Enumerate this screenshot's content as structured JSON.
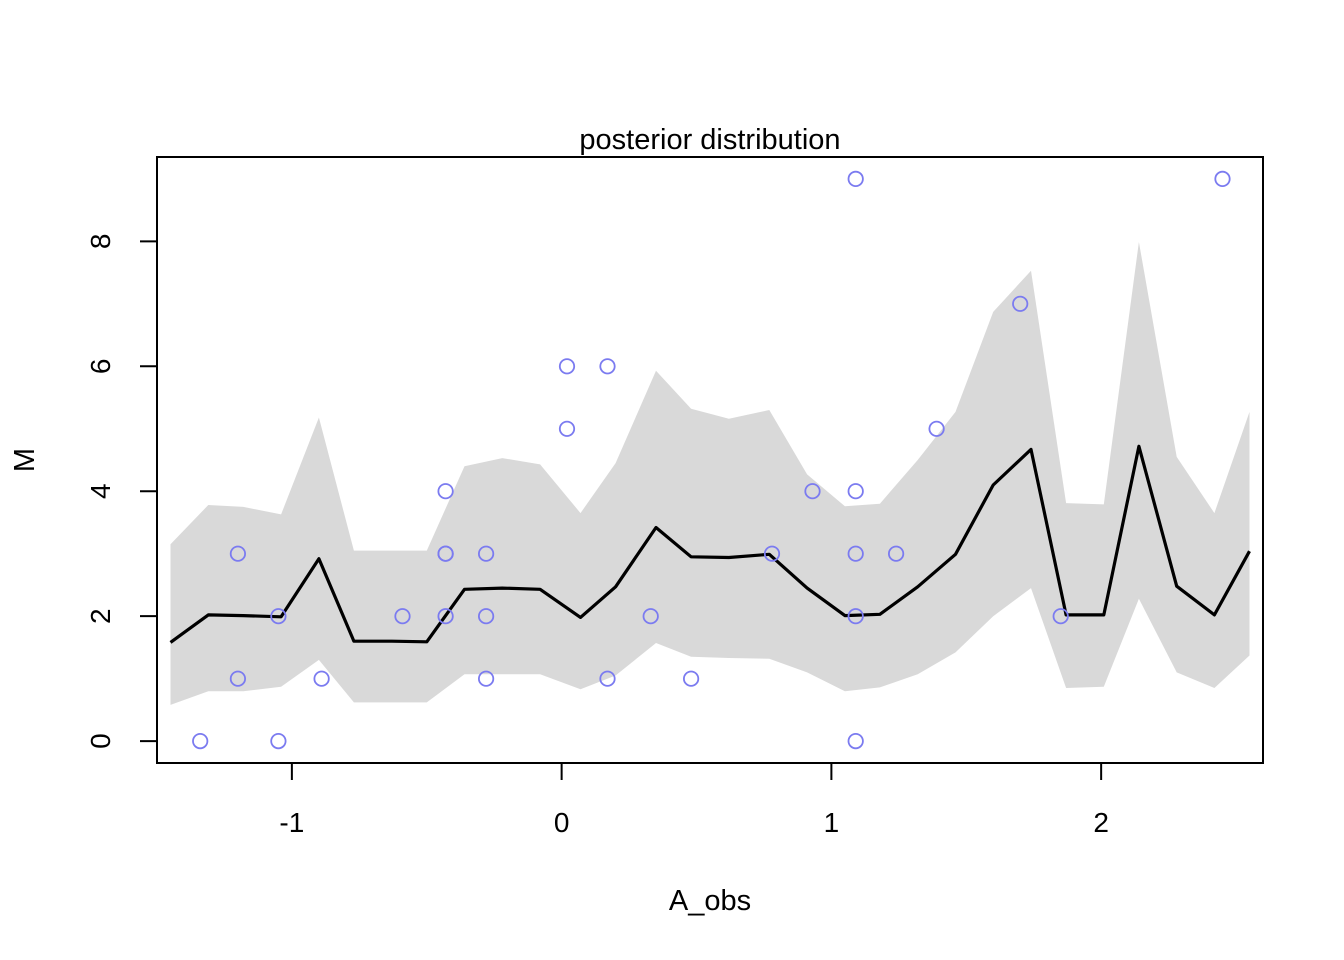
{
  "chart_data": {
    "type": "scatter",
    "title": "posterior distribution",
    "xlabel": "A_obs",
    "ylabel": "M",
    "xlim": [
      -1.5,
      2.6
    ],
    "ylim": [
      -0.35,
      9.35
    ],
    "x_ticks": [
      -1,
      0,
      1,
      2
    ],
    "x_tick_labels": [
      "-1",
      "0",
      "1",
      "2"
    ],
    "y_ticks": [
      0,
      2,
      4,
      6,
      8
    ],
    "y_tick_labels": [
      "0",
      "2",
      "4",
      "6",
      "8"
    ],
    "grid": false,
    "colors": {
      "points": "#7b7bf0",
      "interval": "#d9d9d9",
      "mean_line": "#000000",
      "frame": "#000000"
    },
    "points": [
      {
        "x": -1.34,
        "y": 0
      },
      {
        "x": -1.2,
        "y": 3
      },
      {
        "x": -1.2,
        "y": 1
      },
      {
        "x": -1.05,
        "y": 2
      },
      {
        "x": -1.05,
        "y": 0
      },
      {
        "x": -0.89,
        "y": 1
      },
      {
        "x": -0.59,
        "y": 2
      },
      {
        "x": -0.43,
        "y": 4
      },
      {
        "x": -0.43,
        "y": 3
      },
      {
        "x": -0.43,
        "y": 3
      },
      {
        "x": -0.43,
        "y": 2
      },
      {
        "x": -0.28,
        "y": 3
      },
      {
        "x": -0.28,
        "y": 2
      },
      {
        "x": -0.28,
        "y": 1
      },
      {
        "x": 0.02,
        "y": 6
      },
      {
        "x": 0.02,
        "y": 5
      },
      {
        "x": 0.17,
        "y": 6
      },
      {
        "x": 0.17,
        "y": 1
      },
      {
        "x": 0.33,
        "y": 2
      },
      {
        "x": 0.48,
        "y": 1
      },
      {
        "x": 0.78,
        "y": 3
      },
      {
        "x": 0.93,
        "y": 4
      },
      {
        "x": 1.09,
        "y": 9
      },
      {
        "x": 1.09,
        "y": 4
      },
      {
        "x": 1.09,
        "y": 3
      },
      {
        "x": 1.09,
        "y": 2
      },
      {
        "x": 1.09,
        "y": 0
      },
      {
        "x": 1.24,
        "y": 3
      },
      {
        "x": 1.39,
        "y": 5
      },
      {
        "x": 1.7,
        "y": 7
      },
      {
        "x": 1.85,
        "y": 2
      },
      {
        "x": 2.45,
        "y": 9
      }
    ],
    "mean_line": {
      "x": [
        -1.45,
        -1.31,
        -1.18,
        -1.04,
        -0.9,
        -0.77,
        -0.63,
        -0.5,
        -0.36,
        -0.22,
        -0.08,
        0.07,
        0.2,
        0.35,
        0.48,
        0.62,
        0.77,
        0.91,
        1.05,
        1.18,
        1.32,
        1.46,
        1.6,
        1.74,
        1.87,
        2.01,
        2.14,
        2.28,
        2.42,
        2.55
      ],
      "y": [
        1.58,
        2.02,
        2.01,
        1.99,
        2.92,
        1.6,
        1.6,
        1.59,
        2.43,
        2.45,
        2.43,
        1.98,
        2.47,
        3.42,
        2.95,
        2.94,
        2.99,
        2.45,
        2.01,
        2.03,
        2.47,
        2.99,
        4.1,
        4.67,
        2.02,
        2.02,
        4.72,
        2.48,
        2.02,
        3.04
      ]
    },
    "interval": {
      "x": [
        -1.45,
        -1.31,
        -1.18,
        -1.04,
        -0.9,
        -0.77,
        -0.63,
        -0.5,
        -0.36,
        -0.22,
        -0.08,
        0.07,
        0.2,
        0.35,
        0.48,
        0.62,
        0.77,
        0.91,
        1.05,
        1.18,
        1.32,
        1.46,
        1.6,
        1.74,
        1.87,
        2.01,
        2.14,
        2.28,
        2.42,
        2.55
      ],
      "lower": [
        0.58,
        0.8,
        0.8,
        0.87,
        1.3,
        0.62,
        0.62,
        0.62,
        1.07,
        1.07,
        1.07,
        0.83,
        1.05,
        1.57,
        1.35,
        1.33,
        1.32,
        1.1,
        0.8,
        0.86,
        1.07,
        1.42,
        2.0,
        2.45,
        0.85,
        0.87,
        2.28,
        1.1,
        0.85,
        1.37
      ],
      "upper": [
        3.15,
        3.78,
        3.75,
        3.63,
        5.18,
        3.05,
        3.05,
        3.05,
        4.4,
        4.53,
        4.43,
        3.65,
        4.45,
        5.93,
        5.32,
        5.16,
        5.3,
        4.27,
        3.76,
        3.8,
        4.5,
        5.27,
        6.87,
        7.53,
        3.81,
        3.79,
        7.99,
        4.55,
        3.65,
        5.27
      ]
    }
  }
}
